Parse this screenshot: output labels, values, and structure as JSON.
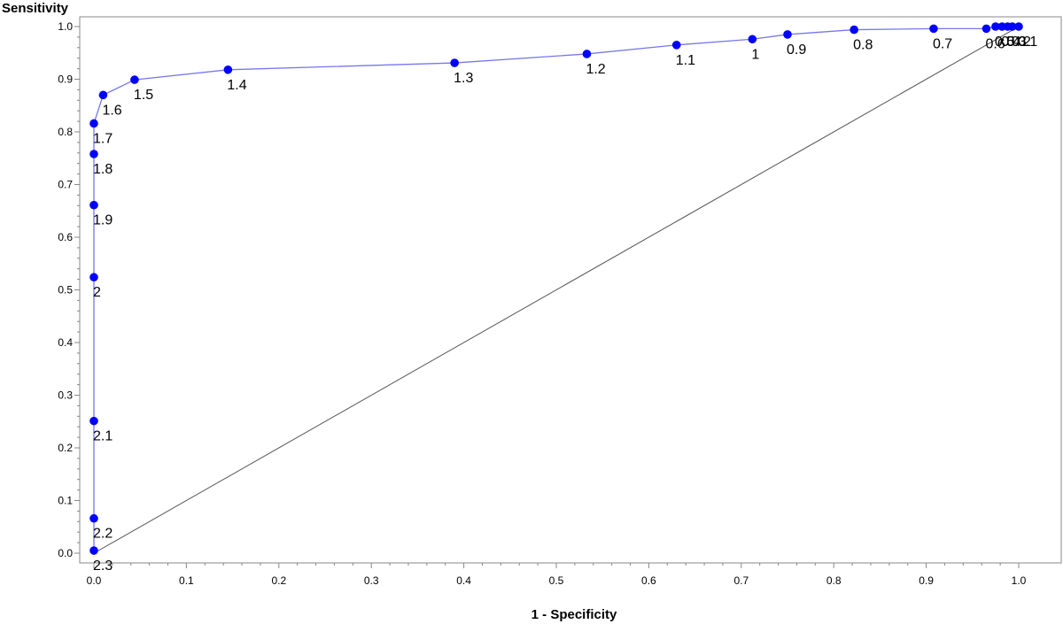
{
  "chart_data": {
    "type": "line",
    "title": "",
    "xlabel": "1 - Specificity",
    "ylabel": "Sensitivity",
    "xlim": [
      0.0,
      1.0
    ],
    "ylim": [
      0.0,
      1.0
    ],
    "x_ticks": [
      "0.0",
      "0.1",
      "0.2",
      "0.3",
      "0.4",
      "0.5",
      "0.6",
      "0.7",
      "0.8",
      "0.9",
      "1.0"
    ],
    "y_ticks": [
      "0.0",
      "0.1",
      "0.2",
      "0.3",
      "0.4",
      "0.5",
      "0.6",
      "0.7",
      "0.8",
      "0.9",
      "1.0"
    ],
    "grid": false,
    "colors": {
      "curve": "#0000ff",
      "curve_line": "#7777ee",
      "diagonal": "#555555",
      "frame": "#888888"
    },
    "series": [
      {
        "points": [
          {
            "x": 0.0,
            "y": 0.005,
            "label": "2.3"
          },
          {
            "x": 0.0,
            "y": 0.066,
            "label": "2.2"
          },
          {
            "x": 0.0,
            "y": 0.251,
            "label": "2.1"
          },
          {
            "x": 0.0,
            "y": 0.524,
            "label": "2"
          },
          {
            "x": 0.0,
            "y": 0.661,
            "label": "1.9"
          },
          {
            "x": 0.0,
            "y": 0.758,
            "label": "1.8"
          },
          {
            "x": 0.0,
            "y": 0.816,
            "label": "1.7"
          },
          {
            "x": 0.01,
            "y": 0.87,
            "label": "1.6"
          },
          {
            "x": 0.044,
            "y": 0.899,
            "label": "1.5"
          },
          {
            "x": 0.145,
            "y": 0.918,
            "label": "1.4"
          },
          {
            "x": 0.39,
            "y": 0.931,
            "label": "1.3"
          },
          {
            "x": 0.533,
            "y": 0.948,
            "label": "1.2"
          },
          {
            "x": 0.63,
            "y": 0.965,
            "label": "1.1"
          },
          {
            "x": 0.712,
            "y": 0.976,
            "label": "1"
          },
          {
            "x": 0.75,
            "y": 0.985,
            "label": "0.9"
          },
          {
            "x": 0.822,
            "y": 0.994,
            "label": "0.8"
          },
          {
            "x": 0.908,
            "y": 0.996,
            "label": "0.7"
          },
          {
            "x": 0.965,
            "y": 0.996,
            "label": "0.6"
          },
          {
            "x": 0.975,
            "y": 1.0,
            "label": "0.5"
          },
          {
            "x": 0.982,
            "y": 1.0,
            "label": "0.4"
          },
          {
            "x": 0.988,
            "y": 1.0,
            "label": "0.3"
          },
          {
            "x": 0.993,
            "y": 1.0,
            "label": "0.2"
          },
          {
            "x": 1.0,
            "y": 1.0,
            "label": "0.1"
          }
        ]
      },
      {
        "points": [
          {
            "x": 0.0,
            "y": 0.0
          },
          {
            "x": 1.0,
            "y": 1.0
          }
        ]
      }
    ]
  }
}
